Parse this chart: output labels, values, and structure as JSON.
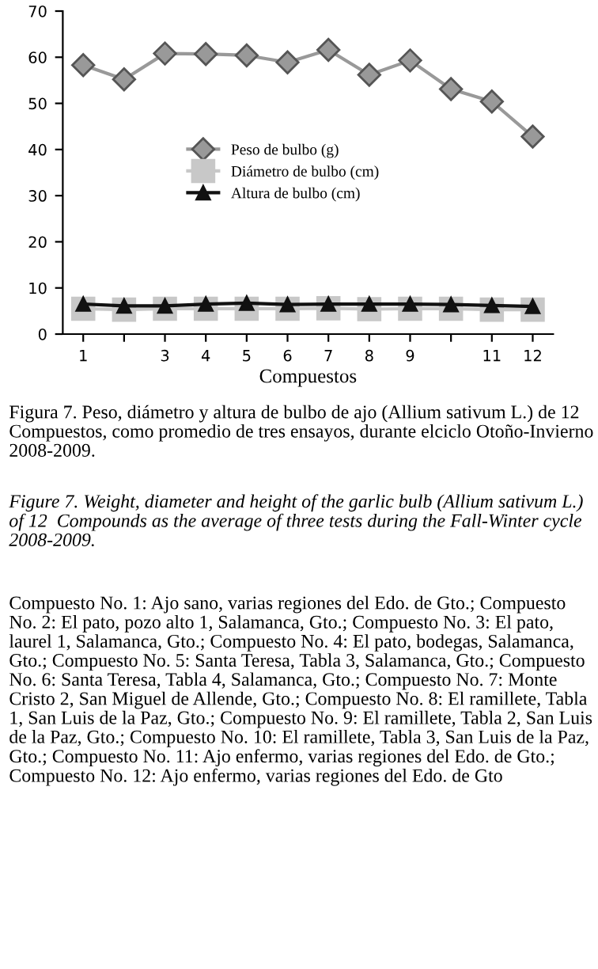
{
  "chart_data": {
    "type": "line",
    "xlabel": "Compuestos",
    "categories": [
      "1",
      null,
      "3",
      "4",
      "5",
      "6",
      "7",
      "8",
      "9",
      null,
      "11",
      "12"
    ],
    "series": [
      {
        "name": "Peso de bulbo (g)",
        "color": "#999999",
        "marker": "diamond",
        "values": [
          58.3,
          55.2,
          60.8,
          60.7,
          60.4,
          58.9,
          61.6,
          56.2,
          59.3,
          53.1,
          50.4,
          42.8
        ]
      },
      {
        "name": "Diámetro de bulbo (cm)",
        "color": "#c8c8c8",
        "marker": "square",
        "values": [
          5.5,
          5.3,
          5.5,
          5.5,
          5.5,
          5.5,
          5.6,
          5.4,
          5.5,
          5.5,
          5.3,
          5.3
        ]
      },
      {
        "name": "Altura de bulbo (cm)",
        "color": "#111111",
        "marker": "triangle",
        "values": [
          6.5,
          6.1,
          6.1,
          6.5,
          6.7,
          6.4,
          6.5,
          6.5,
          6.5,
          6.4,
          6.2,
          6.0
        ]
      }
    ],
    "ylim": [
      0,
      70
    ],
    "yticks": [
      0,
      10,
      20,
      30,
      40,
      50,
      60,
      70
    ],
    "legend": "center",
    "grid": false,
    "annotations": [
      "Figura 7. Peso, diámetro y altura de bulbo de ajo (Allium sativum L.) de 12 Compuestos, como promedio de tres ensayos, durante elciclo Otoño-Invierno 2008-2009.",
      "Figure 7. Weight, diameter and height of the garlic bulb (Allium sativum L.) of 12  Compounds as the average of three tests during the Fall-Winter cycle 2008-2009.",
      "Compuesto No. 1: Ajo sano, varias regiones del Edo. de Gto.; Compuesto No. 2: El pato, pozo alto 1, Salamanca, Gto.; Compuesto No. 3: El pato, laurel 1, Salamanca, Gto.; Compuesto No. 4: El pato, bodegas, Salamanca, Gto.; Compuesto No. 5: Santa Teresa, Tabla 3, Salamanca, Gto.; Compuesto No. 6: Santa Teresa, Tabla 4, Salamanca, Gto.; Compuesto No. 7: Monte Cristo 2, San Miguel de Allende, Gto.; Compuesto No. 8: El ramillete, Tabla 1, San Luis de la Paz, Gto.; Compuesto No. 9: El ramillete, Tabla 2, San Luis de la Paz, Gto.; Compuesto No. 10: El ramillete, Tabla 3, San Luis de la Paz, Gto.; Compuesto No. 11: Ajo enfermo, varias regiones del Edo. de Gto.; Compuesto No. 12: Ajo enfermo, varias regiones del Edo. de Gto"
    ]
  }
}
